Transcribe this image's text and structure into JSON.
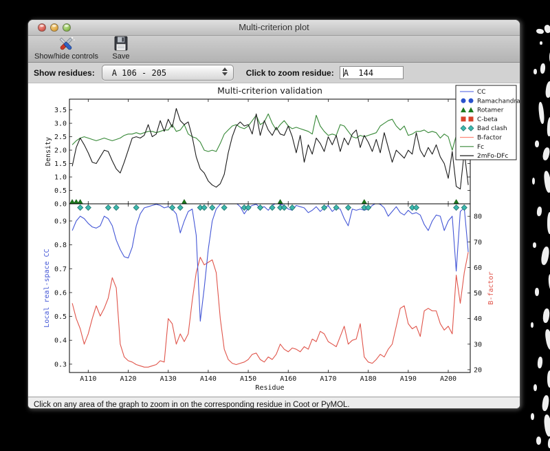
{
  "window": {
    "title": "Multi-criterion plot"
  },
  "toolbar": {
    "buttons": [
      {
        "label": "Show/hide controls",
        "icon": "tools-icon"
      },
      {
        "label": "Save",
        "icon": "save-icon"
      }
    ]
  },
  "controls": {
    "show_residues_label": "Show residues:",
    "show_residues_value": "A 106 - 205",
    "zoom_residue_label": "Click to zoom residue:",
    "zoom_residue_value": "A  144"
  },
  "status_bar": {
    "text": "Click on any area of the graph to zoom in on the corresponding residue in Coot or PyMOL."
  },
  "chart_data": {
    "type": "line",
    "title": "Multi-criterion validation",
    "x_label": "Residue",
    "x_start": 106,
    "x_end": 205,
    "x_range": [
      105.3,
      205.5
    ],
    "x_ticks": [
      110,
      120,
      130,
      140,
      150,
      160,
      170,
      180,
      190,
      200
    ],
    "x_tick_labels": [
      "A110",
      "A120",
      "A130",
      "A140",
      "A150",
      "A160",
      "A170",
      "A180",
      "A190",
      "A200"
    ],
    "panels": [
      {
        "name": "density",
        "ylabel": "Density",
        "ylabel_color": "#111111",
        "ylim": [
          0,
          3.9
        ],
        "yticks": [
          0.0,
          0.5,
          1.0,
          1.5,
          2.0,
          2.5,
          3.0,
          3.5
        ],
        "series": [
          {
            "name": "Fc",
            "color": "#368836",
            "values": [
              2.2,
              2.35,
              2.45,
              2.5,
              2.45,
              2.4,
              2.35,
              2.4,
              2.45,
              2.4,
              2.35,
              2.4,
              2.45,
              2.55,
              2.6,
              2.6,
              2.65,
              2.6,
              2.65,
              2.7,
              2.7,
              2.65,
              2.7,
              2.75,
              2.75,
              2.95,
              2.7,
              2.75,
              2.95,
              2.6,
              2.5,
              2.45,
              2.3,
              2.0,
              1.95,
              2.0,
              1.95,
              2.25,
              2.6,
              2.75,
              2.9,
              2.95,
              2.85,
              2.8,
              2.9,
              3.1,
              3.3,
              2.95,
              3.05,
              3.35,
              3.0,
              2.75,
              2.95,
              3.1,
              2.9,
              2.8,
              2.85,
              2.8,
              2.75,
              2.7,
              2.6,
              3.3,
              2.9,
              2.7,
              2.55,
              2.6,
              2.55,
              2.95,
              2.9,
              2.7,
              2.5,
              2.45,
              2.55,
              2.5,
              2.55,
              2.6,
              2.65,
              2.9,
              3.0,
              3.1,
              3.15,
              2.9,
              2.75,
              2.9,
              2.55,
              2.6,
              2.7,
              2.7,
              2.75,
              2.65,
              2.7,
              2.65,
              2.45,
              2.6,
              2.5,
              2.0,
              2.55,
              2.7,
              3.0,
              2.9
            ]
          },
          {
            "name": "2mFo-DFc",
            "color": "#1a1a1a",
            "values": [
              1.4,
              2.1,
              2.45,
              2.2,
              1.9,
              1.55,
              1.5,
              1.75,
              2.0,
              1.95,
              1.6,
              1.3,
              1.15,
              1.55,
              2.0,
              2.45,
              2.5,
              2.45,
              2.55,
              2.95,
              2.5,
              2.6,
              3.1,
              2.7,
              3.15,
              2.85,
              3.55,
              3.1,
              2.95,
              3.05,
              2.5,
              1.75,
              1.3,
              1.15,
              0.85,
              0.7,
              0.62,
              0.75,
              1.1,
              1.9,
              2.5,
              2.9,
              3.05,
              2.9,
              2.95,
              2.6,
              3.35,
              2.55,
              3.1,
              2.75,
              2.55,
              2.85,
              2.6,
              2.55,
              2.9,
              2.5,
              1.9,
              2.55,
              1.55,
              2.2,
              1.85,
              2.45,
              2.25,
              1.95,
              2.5,
              2.2,
              2.55,
              1.95,
              2.45,
              2.2,
              2.6,
              2.75,
              2.1,
              2.55,
              2.3,
              1.95,
              2.4,
              1.9,
              2.65,
              2.1,
              1.55,
              2.0,
              1.85,
              1.7,
              2.0,
              1.85,
              2.65,
              2.0,
              1.75,
              2.1,
              1.85,
              2.2,
              1.75,
              1.5,
              0.95,
              1.95,
              0.65,
              0.55,
              1.95,
              0.7
            ]
          }
        ]
      },
      {
        "name": "cc-bfactor",
        "left_axis": {
          "label": "Local real-space CC",
          "color": "#4356d6",
          "ylim": [
            0.265,
            0.972
          ],
          "yticks": [
            0.3,
            0.4,
            0.5,
            0.6,
            0.7,
            0.8,
            0.9
          ]
        },
        "right_axis": {
          "label": "B-factor",
          "color": "#e0544a",
          "ylim": [
            18.9,
            84.9
          ],
          "yticks": [
            20,
            30,
            40,
            50,
            60,
            70,
            80
          ]
        },
        "series": [
          {
            "name": "CC",
            "axis": "left",
            "color": "#4356d6",
            "values": [
              0.86,
              0.9,
              0.92,
              0.91,
              0.89,
              0.875,
              0.87,
              0.88,
              0.92,
              0.91,
              0.88,
              0.82,
              0.78,
              0.75,
              0.745,
              0.79,
              0.88,
              0.93,
              0.955,
              0.96,
              0.965,
              0.97,
              0.965,
              0.955,
              0.96,
              0.95,
              0.93,
              0.85,
              0.9,
              0.94,
              0.95,
              0.84,
              0.48,
              0.62,
              0.78,
              0.9,
              0.95,
              0.97,
              0.975,
              0.975,
              0.98,
              0.975,
              0.96,
              0.93,
              0.955,
              0.965,
              0.97,
              0.955,
              0.96,
              0.945,
              0.965,
              0.975,
              0.97,
              0.965,
              0.95,
              0.945,
              0.965,
              0.96,
              0.955,
              0.935,
              0.945,
              0.96,
              0.94,
              0.955,
              0.965,
              0.94,
              0.955,
              0.95,
              0.91,
              0.88,
              0.95,
              0.945,
              0.95,
              0.945,
              0.95,
              0.965,
              0.975,
              0.97,
              0.955,
              0.92,
              0.94,
              0.96,
              0.935,
              0.925,
              0.945,
              0.93,
              0.935,
              0.925,
              0.885,
              0.86,
              0.9,
              0.925,
              0.92,
              0.86,
              0.9,
              0.92,
              0.69,
              0.94,
              0.955,
              0.77
            ]
          },
          {
            "name": "B-factor",
            "axis": "right",
            "color": "#e0544a",
            "values": [
              46,
              40,
              36,
              30,
              34,
              40,
              45,
              41,
              44,
              48,
              56,
              52,
              30,
              25,
              23.5,
              23,
              22,
              21.5,
              21,
              21,
              21.5,
              22,
              23.5,
              23,
              40,
              38,
              30,
              34,
              31,
              34,
              47,
              58,
              64,
              61,
              62,
              63,
              58,
              40,
              28,
              24,
              22.5,
              22,
              22.5,
              23,
              24,
              26,
              26.5,
              24,
              23,
              25,
              24,
              26,
              30,
              28,
              27,
              28.5,
              28,
              27,
              29,
              28,
              32,
              31,
              35,
              34,
              31,
              30,
              29,
              33,
              37,
              30,
              31.5,
              32,
              38,
              25,
              23,
              22.5,
              24,
              26,
              25,
              28,
              30,
              37,
              44,
              45,
              38,
              36,
              37,
              33,
              43,
              44,
              43,
              43,
              38,
              35.5,
              37,
              34,
              57,
              46,
              58,
              66
            ]
          }
        ],
        "markers": [
          {
            "name": "Rotamer",
            "shape": "triangle",
            "color": "#1d7a1d",
            "residues": [
              106,
              107,
              108,
              134,
              158,
              179,
              202
            ]
          },
          {
            "name": "Bad clash",
            "shape": "diamond",
            "color": "#3cb8ae",
            "residues": [
              108,
              110,
              115,
              117,
              122,
              131,
              133,
              138,
              139,
              141,
              144,
              149,
              150,
              153,
              156,
              158,
              159,
              161,
              169,
              172,
              175,
              179,
              180,
              191,
              192,
              202,
              204
            ]
          }
        ]
      }
    ],
    "legend": {
      "position": "upper right",
      "entries": [
        {
          "label": "CC",
          "glyph": "line",
          "color": "#6b79e8"
        },
        {
          "label": "Ramachandran",
          "glyph": "circles",
          "color": "#2a52cc"
        },
        {
          "label": "Rotamer",
          "glyph": "triangles",
          "color": "#1d7a1d"
        },
        {
          "label": "C-beta",
          "glyph": "squares",
          "color": "#d8442a"
        },
        {
          "label": "Bad clash",
          "glyph": "diamonds",
          "color": "#3cb8ae"
        },
        {
          "label": "B-factor",
          "glyph": "line",
          "color": "#ff8878"
        },
        {
          "label": "Fc",
          "glyph": "line",
          "color": "#368836"
        },
        {
          "label": "2mFo-DFc",
          "glyph": "line",
          "color": "#1a1a1a"
        }
      ]
    }
  }
}
